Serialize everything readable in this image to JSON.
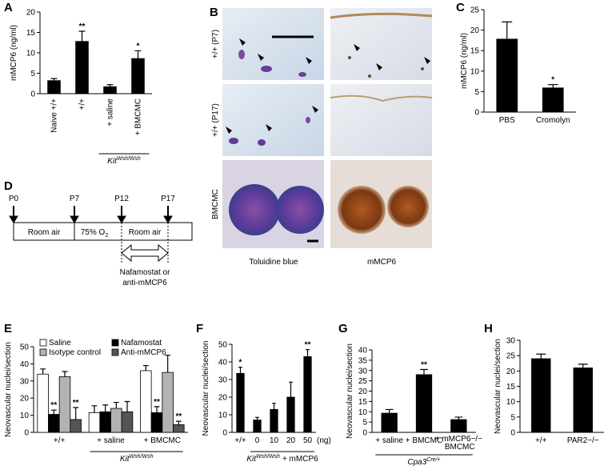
{
  "chart_data": [
    {
      "type": "bar",
      "panel": "A",
      "ylabel": "mMCP6 (ng/ml)",
      "categories": [
        "Naive +/+",
        "+/+",
        "+ saline",
        "+ BMCMC"
      ],
      "values": [
        3.2,
        12.8,
        1.7,
        8.6
      ],
      "errors": [
        0.5,
        2.5,
        0.5,
        1.9
      ],
      "annotations": [
        null,
        "**",
        null,
        "*"
      ],
      "color": "#000000",
      "ylim": [
        0,
        20
      ],
      "yticks": [
        0,
        5,
        10,
        15,
        20
      ],
      "group_label": {
        "text": "Kit",
        "sup": "Wsh/Wsh"
      }
    },
    {
      "type": "bar",
      "panel": "C",
      "ylabel": "mMCP6 (ng/ml)",
      "categories": [
        "PBS",
        "Cromolyn"
      ],
      "values": [
        17.8,
        5.9
      ],
      "errors": [
        4.2,
        0.8
      ],
      "annotations": [
        null,
        "*"
      ],
      "color": "#000000",
      "ylim": [
        0,
        25
      ],
      "yticks": [
        0,
        5,
        10,
        15,
        20,
        25
      ]
    },
    {
      "type": "grouped_bar",
      "panel": "E",
      "ylabel": "Neovascular nuclei/section",
      "categories": [
        "+/+",
        "+ saline",
        "+ BMCMC"
      ],
      "series": [
        {
          "name": "Saline",
          "color": "#ffffff",
          "values": [
            34,
            11.5,
            36
          ],
          "errors": [
            3,
            4,
            3
          ]
        },
        {
          "name": "Nafamostat",
          "color": "#000000",
          "values": [
            10.5,
            12,
            11.5
          ],
          "errors": [
            2.5,
            4,
            3.5
          ],
          "annotations": [
            "**",
            null,
            "**"
          ]
        },
        {
          "name": "Isotype control",
          "color": "#b3b3b3",
          "values": [
            32.5,
            14,
            35
          ],
          "errors": [
            3,
            3.5,
            10
          ]
        },
        {
          "name": "Anti-mMCP6",
          "color": "#555555",
          "values": [
            7.5,
            12,
            4.5
          ],
          "errors": [
            7,
            6,
            2
          ],
          "annotations": [
            "**",
            null,
            "**"
          ]
        }
      ],
      "ylim": [
        0,
        50
      ],
      "yticks": [
        0,
        10,
        20,
        30,
        40,
        50
      ],
      "group_label": {
        "text": "Kit",
        "sup": "Wsh/Wsh"
      }
    },
    {
      "type": "bar",
      "panel": "F",
      "ylabel": "Neovascular nuclei/section",
      "categories": [
        "+/+",
        "0",
        "10",
        "20",
        "50"
      ],
      "x_unit": "(ng)",
      "values": [
        33.5,
        7,
        13,
        20,
        43
      ],
      "errors": [
        3.5,
        1.5,
        3.5,
        8.5,
        4
      ],
      "annotations": [
        "*",
        null,
        null,
        null,
        "**"
      ],
      "color": "#000000",
      "ylim": [
        0,
        50
      ],
      "yticks": [
        0,
        10,
        20,
        30,
        40,
        50
      ],
      "group_label": {
        "text": "Kit",
        "sup": "Wsh/Wsh",
        "after": "+ mMCP6"
      }
    },
    {
      "type": "bar",
      "panel": "G",
      "ylabel": "Neovascular nuclei/section",
      "categories": [
        "+ saline",
        "+ BMCMC",
        "+ mMCP6−/− BMCMC"
      ],
      "values": [
        9.3,
        28,
        6.2
      ],
      "errors": [
        1.8,
        2.5,
        1.2
      ],
      "annotations": [
        null,
        "**",
        null
      ],
      "color": "#000000",
      "ylim": [
        0,
        40
      ],
      "yticks": [
        0,
        5,
        10,
        15,
        20,
        25,
        30,
        35,
        40
      ],
      "group_label": {
        "text": "Cpa3",
        "sup": "Cre/+"
      }
    },
    {
      "type": "bar",
      "panel": "H",
      "ylabel": "Neovascular nuclei/section",
      "categories": [
        "+/+",
        "PAR2−/−"
      ],
      "values": [
        24,
        21
      ],
      "errors": [
        1.5,
        1.2
      ],
      "color": "#000000",
      "ylim": [
        0,
        30
      ],
      "yticks": [
        0,
        5,
        10,
        15,
        20,
        25,
        30
      ]
    }
  ],
  "panel_b": {
    "panel": "B",
    "rows": [
      "+/+ (P7)",
      "+/+ (P17)",
      "BMCMC"
    ],
    "columns": [
      "Toluidine blue",
      "mMCP6"
    ]
  },
  "panel_d": {
    "panel": "D",
    "timepoints": [
      "P0",
      "P7",
      "P12",
      "P17"
    ],
    "phase_1": "Room air",
    "phase_2": {
      "text": "75% O",
      "sub": "2"
    },
    "phase_3": "Room air",
    "treatment": [
      "Nafamostat or",
      "anti-mMCP6"
    ]
  }
}
